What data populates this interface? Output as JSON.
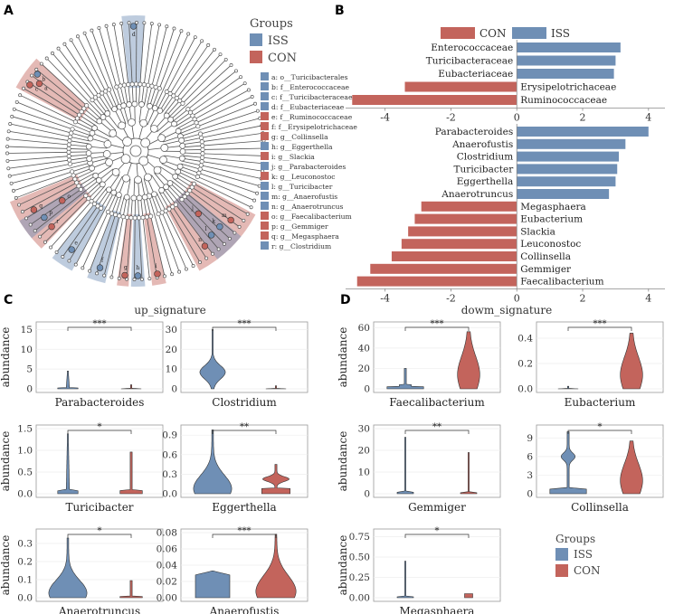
{
  "panel_letters": {
    "a": "A",
    "b": "B",
    "c": "C",
    "d": "D"
  },
  "colors": {
    "iss": "#6f8fb5",
    "con": "#c3645c",
    "node": "#ffffff",
    "line": "#555555"
  },
  "cladogram": {
    "legend_title": "Groups",
    "legend_items": [
      {
        "label": "ISS",
        "group": "iss"
      },
      {
        "label": "CON",
        "group": "con"
      }
    ],
    "taxa_key": [
      {
        "text": "a: o__Turicibacterales",
        "group": "iss"
      },
      {
        "text": "b: f__Enterococcaceae",
        "group": "iss"
      },
      {
        "text": "c: f__Turicibacteraceae",
        "group": "iss"
      },
      {
        "text": "d: f__Eubacteriaceae",
        "group": "iss"
      },
      {
        "text": "e: f__Ruminococcaceae",
        "group": "con"
      },
      {
        "text": "f: f__Erysipelotrichaceae",
        "group": "con"
      },
      {
        "text": "g: g__Collinsella",
        "group": "con"
      },
      {
        "text": "h: g__Eggerthella",
        "group": "iss"
      },
      {
        "text": "i: g__Slackia",
        "group": "con"
      },
      {
        "text": "j: g__Parabacteroides",
        "group": "iss"
      },
      {
        "text": "k: g__Leuconostoc",
        "group": "con"
      },
      {
        "text": "l: g__Turicibacter",
        "group": "iss"
      },
      {
        "text": "m: g__Anaerofustis",
        "group": "iss"
      },
      {
        "text": "n: g__Anaerotruncus",
        "group": "iss"
      },
      {
        "text": "o: g__Faecalibacterium",
        "group": "con"
      },
      {
        "text": "p: g__Gemmiger",
        "group": "con"
      },
      {
        "text": "q: g__Megasphaera",
        "group": "con"
      },
      {
        "text": "r: g__Clostridium",
        "group": "iss"
      }
    ],
    "node_letters": [
      "a",
      "b",
      "c",
      "d",
      "e",
      "f",
      "g",
      "h",
      "i",
      "j",
      "k",
      "l",
      "m",
      "n",
      "o",
      "p",
      "q",
      "r"
    ]
  },
  "chart_data": [
    {
      "type": "bar",
      "id": "lda_family",
      "title": "",
      "orientation": "horizontal",
      "legend": [
        {
          "name": "CON",
          "group": "con"
        },
        {
          "name": "ISS",
          "group": "iss"
        }
      ],
      "categories": [
        "Enterococcaceae",
        "Turicibacteraceae",
        "Eubacteriaceae",
        "Erysipelotrichaceae",
        "Ruminococcaceae"
      ],
      "values": [
        3.15,
        3.0,
        2.95,
        -3.4,
        -5.0
      ],
      "groups": [
        "iss",
        "iss",
        "iss",
        "con",
        "con"
      ],
      "xlim": [
        -5.2,
        4.5
      ],
      "xticks": [
        -4,
        -2,
        0,
        2,
        4
      ],
      "xtick_labels": [
        "-4",
        "-2",
        "0",
        "2",
        "4"
      ]
    },
    {
      "type": "bar",
      "id": "lda_genus",
      "title": "",
      "orientation": "horizontal",
      "categories": [
        "Parabacteroides",
        "Anaerofustis",
        "Clostridium",
        "Turicibacter",
        "Eggerthella",
        "Anaerotruncus",
        "Megasphaera",
        "Eubacterium",
        "Slackia",
        "Leuconostoc",
        "Collinsella",
        "Gemmiger",
        "Faecalibacterium"
      ],
      "values": [
        4.0,
        3.3,
        3.1,
        3.05,
        3.0,
        2.8,
        -2.9,
        -3.1,
        -3.3,
        -3.5,
        -3.8,
        -4.45,
        -4.85
      ],
      "groups": [
        "iss",
        "iss",
        "iss",
        "iss",
        "iss",
        "iss",
        "con",
        "con",
        "con",
        "con",
        "con",
        "con",
        "con"
      ],
      "xlim": [
        -5.2,
        4.5
      ],
      "xticks": [
        -4,
        -2,
        0,
        2,
        4
      ],
      "xtick_labels": [
        "-4",
        "-2",
        "0",
        "2",
        "4"
      ]
    },
    {
      "type": "violin",
      "id": "up_signature",
      "title": "up_signature",
      "ylabel": "abundance",
      "groups_order": [
        "ISS",
        "CON"
      ],
      "panels": [
        {
          "name": "Parabacteroides",
          "yticks": [
            "0",
            "5",
            "10",
            "15"
          ],
          "ymax": 16,
          "sig": "***",
          "iss": {
            "max": 4.5,
            "shape": "spike"
          },
          "con": {
            "max": 1.0,
            "shape": "flat"
          }
        },
        {
          "name": "Clostridium",
          "yticks": [
            "0",
            "10",
            "20",
            "30"
          ],
          "ymax": 32,
          "sig": "***",
          "iss": {
            "max": 30,
            "shape": "tall"
          },
          "con": {
            "max": 1.5,
            "shape": "flat"
          }
        },
        {
          "name": "Turicibacter",
          "yticks": [
            "0.0",
            "0.5",
            "1.0",
            "1.5"
          ],
          "ymax": 1.5,
          "sig": "*",
          "iss": {
            "max": 1.38,
            "shape": "spike"
          },
          "con": {
            "max": 0.96,
            "shape": "thin"
          }
        },
        {
          "name": "Eggerthella",
          "yticks": [
            "0.0",
            "0.3",
            "0.6",
            "0.9"
          ],
          "ymax": 1.0,
          "sig": "**",
          "iss": {
            "max": 0.98,
            "shape": "bell"
          },
          "con": {
            "max": 0.45,
            "shape": "bulb"
          }
        },
        {
          "name": "Anaerotruncus",
          "yticks": [
            "0.0",
            "0.1",
            "0.2",
            "0.3"
          ],
          "ymax": 0.36,
          "sig": "*",
          "iss": {
            "max": 0.33,
            "shape": "bell"
          },
          "con": {
            "max": 0.095,
            "shape": "thin"
          }
        },
        {
          "name": "Anaerofustis",
          "yticks": [
            "0.00",
            "0.02",
            "0.04",
            "0.06",
            "0.08"
          ],
          "ymax": 0.08,
          "sig": "***",
          "iss": {
            "max": 0.033,
            "shape": "block"
          },
          "con": {
            "max": 0.078,
            "shape": "wide"
          }
        }
      ]
    },
    {
      "type": "violin",
      "id": "down_signature",
      "title": "dowm_signature",
      "ylabel": "abundance",
      "groups_order": [
        "ISS",
        "CON"
      ],
      "panels": [
        {
          "name": "Faecalibacterium",
          "yticks": [
            "0",
            "20",
            "40",
            "60"
          ],
          "ymax": 62,
          "sig": "***",
          "iss": {
            "max": 20,
            "shape": "flatwide"
          },
          "con": {
            "max": 56,
            "shape": "long"
          }
        },
        {
          "name": "Eubacterium",
          "yticks": [
            "0.0",
            "0.2",
            "0.4"
          ],
          "ymax": 0.5,
          "sig": "***",
          "iss": {
            "max": 0.02,
            "shape": "flat"
          },
          "con": {
            "max": 0.44,
            "shape": "long"
          }
        },
        {
          "name": "Gemmiger",
          "yticks": [
            "0",
            "10",
            "20",
            "30"
          ],
          "ymax": 30,
          "sig": "**",
          "iss": {
            "max": 26,
            "shape": "line"
          },
          "con": {
            "max": 19,
            "shape": "line"
          }
        },
        {
          "name": "Collinsella",
          "yticks": [
            "0",
            "3",
            "6",
            "9"
          ],
          "ymax": 10.5,
          "sig": "*",
          "iss": {
            "max": 10,
            "shape": "drop"
          },
          "con": {
            "max": 8.5,
            "shape": "long"
          }
        },
        {
          "name": "Megasphaera",
          "yticks": [
            "0.00",
            "0.25",
            "0.50",
            "0.75"
          ],
          "ymax": 0.8,
          "sig": "*",
          "iss": {
            "max": 0.45,
            "shape": "line"
          },
          "con": {
            "max": 0.05,
            "shape": "tiny"
          }
        }
      ],
      "legend_title": "Groups",
      "legend_items": [
        {
          "label": "ISS",
          "group": "iss"
        },
        {
          "label": "CON",
          "group": "con"
        }
      ]
    }
  ]
}
